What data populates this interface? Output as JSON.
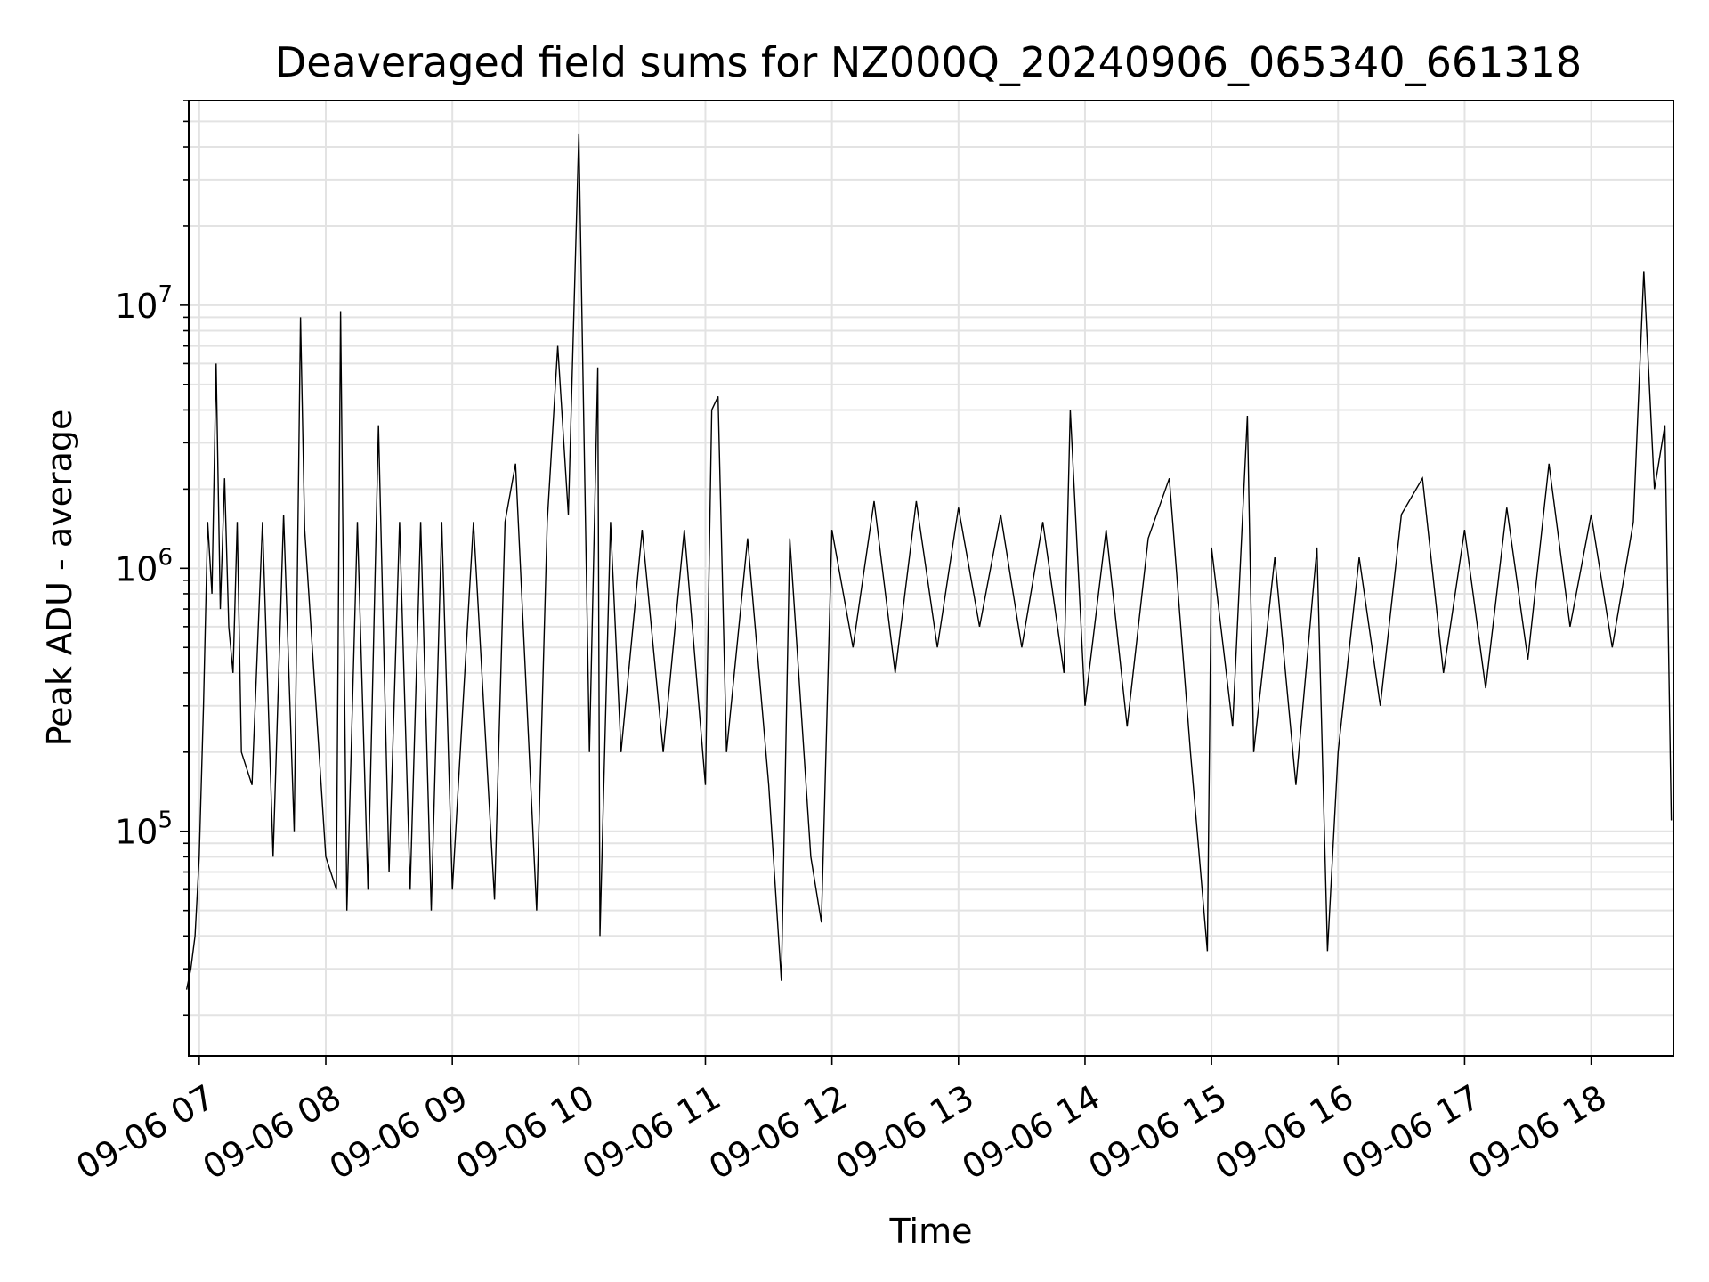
{
  "chart_data": {
    "type": "line",
    "title": "Deaveraged field sums for NZ000Q_20240906_065340_661318",
    "xlabel": "Time",
    "ylabel": "Peak ADU - average",
    "yscale": "log",
    "ylim": [
      14000,
      60000000
    ],
    "xlim": [
      "2024-09-06 06:55",
      "2024-09-06 18:39"
    ],
    "grid": true,
    "line_color": "#000000",
    "x_ticks": [
      {
        "value": "2024-09-06 07:00",
        "label": "09-06 07"
      },
      {
        "value": "2024-09-06 08:00",
        "label": "09-06 08"
      },
      {
        "value": "2024-09-06 09:00",
        "label": "09-06 09"
      },
      {
        "value": "2024-09-06 10:00",
        "label": "09-06 10"
      },
      {
        "value": "2024-09-06 11:00",
        "label": "09-06 11"
      },
      {
        "value": "2024-09-06 12:00",
        "label": "09-06 12"
      },
      {
        "value": "2024-09-06 13:00",
        "label": "09-06 13"
      },
      {
        "value": "2024-09-06 14:00",
        "label": "09-06 14"
      },
      {
        "value": "2024-09-06 15:00",
        "label": "09-06 15"
      },
      {
        "value": "2024-09-06 16:00",
        "label": "09-06 16"
      },
      {
        "value": "2024-09-06 17:00",
        "label": "09-06 17"
      },
      {
        "value": "2024-09-06 18:00",
        "label": "09-06 18"
      }
    ],
    "y_ticks": [
      {
        "value": 100000,
        "base": "10",
        "exp": "5"
      },
      {
        "value": 1000000,
        "base": "10",
        "exp": "6"
      },
      {
        "value": 10000000,
        "base": "10",
        "exp": "7"
      }
    ],
    "x": [
      "2024-09-06 06:54",
      "2024-09-06 06:56",
      "2024-09-06 06:58",
      "2024-09-06 07:00",
      "2024-09-06 07:02",
      "2024-09-06 07:04",
      "2024-09-06 07:06",
      "2024-09-06 07:08",
      "2024-09-06 07:10",
      "2024-09-06 07:12",
      "2024-09-06 07:14",
      "2024-09-06 07:16",
      "2024-09-06 07:18",
      "2024-09-06 07:20",
      "2024-09-06 07:25",
      "2024-09-06 07:30",
      "2024-09-06 07:35",
      "2024-09-06 07:40",
      "2024-09-06 07:45",
      "2024-09-06 07:48",
      "2024-09-06 07:50",
      "2024-09-06 08:00",
      "2024-09-06 08:05",
      "2024-09-06 08:07",
      "2024-09-06 08:10",
      "2024-09-06 08:15",
      "2024-09-06 08:20",
      "2024-09-06 08:25",
      "2024-09-06 08:30",
      "2024-09-06 08:35",
      "2024-09-06 08:40",
      "2024-09-06 08:45",
      "2024-09-06 08:50",
      "2024-09-06 08:55",
      "2024-09-06 09:00",
      "2024-09-06 09:10",
      "2024-09-06 09:20",
      "2024-09-06 09:25",
      "2024-09-06 09:30",
      "2024-09-06 09:40",
      "2024-09-06 09:45",
      "2024-09-06 09:50",
      "2024-09-06 09:55",
      "2024-09-06 10:00",
      "2024-09-06 10:05",
      "2024-09-06 10:09",
      "2024-09-06 10:10",
      "2024-09-06 10:15",
      "2024-09-06 10:20",
      "2024-09-06 10:30",
      "2024-09-06 10:40",
      "2024-09-06 10:50",
      "2024-09-06 11:00",
      "2024-09-06 11:03",
      "2024-09-06 11:06",
      "2024-09-06 11:10",
      "2024-09-06 11:20",
      "2024-09-06 11:30",
      "2024-09-06 11:36",
      "2024-09-06 11:40",
      "2024-09-06 11:50",
      "2024-09-06 11:55",
      "2024-09-06 12:00",
      "2024-09-06 12:10",
      "2024-09-06 12:20",
      "2024-09-06 12:30",
      "2024-09-06 12:40",
      "2024-09-06 12:50",
      "2024-09-06 13:00",
      "2024-09-06 13:10",
      "2024-09-06 13:20",
      "2024-09-06 13:30",
      "2024-09-06 13:40",
      "2024-09-06 13:50",
      "2024-09-06 13:53",
      "2024-09-06 14:00",
      "2024-09-06 14:10",
      "2024-09-06 14:20",
      "2024-09-06 14:30",
      "2024-09-06 14:40",
      "2024-09-06 14:50",
      "2024-09-06 14:58",
      "2024-09-06 15:00",
      "2024-09-06 15:10",
      "2024-09-06 15:17",
      "2024-09-06 15:20",
      "2024-09-06 15:30",
      "2024-09-06 15:40",
      "2024-09-06 15:50",
      "2024-09-06 15:55",
      "2024-09-06 16:00",
      "2024-09-06 16:10",
      "2024-09-06 16:20",
      "2024-09-06 16:30",
      "2024-09-06 16:40",
      "2024-09-06 16:50",
      "2024-09-06 17:00",
      "2024-09-06 17:10",
      "2024-09-06 17:20",
      "2024-09-06 17:30",
      "2024-09-06 17:40",
      "2024-09-06 17:50",
      "2024-09-06 18:00",
      "2024-09-06 18:10",
      "2024-09-06 18:20",
      "2024-09-06 18:25",
      "2024-09-06 18:30",
      "2024-09-06 18:35",
      "2024-09-06 18:38"
    ],
    "y": [
      25000,
      30000,
      40000,
      80000,
      300000,
      1500000,
      800000,
      6000000,
      700000,
      2200000,
      600000,
      400000,
      1500000,
      200000,
      150000,
      1500000,
      80000,
      1600000,
      100000,
      9000000,
      1400000,
      80000,
      60000,
      9500000,
      50000,
      1500000,
      60000,
      3500000,
      70000,
      1500000,
      60000,
      1500000,
      50000,
      1500000,
      60000,
      1500000,
      55000,
      1500000,
      2500000,
      50000,
      1500000,
      7000000,
      1600000,
      45000000,
      200000,
      5800000,
      40000,
      1500000,
      200000,
      1400000,
      200000,
      1400000,
      150000,
      4000000,
      4500000,
      200000,
      1300000,
      150000,
      27000,
      1300000,
      80000,
      45000,
      1400000,
      500000,
      1800000,
      400000,
      1800000,
      500000,
      1700000,
      600000,
      1600000,
      500000,
      1500000,
      400000,
      4000000,
      300000,
      1400000,
      250000,
      1300000,
      2200000,
      200000,
      35000,
      1200000,
      250000,
      3800000,
      200000,
      1100000,
      150000,
      1200000,
      35000,
      200000,
      1100000,
      300000,
      1600000,
      2200000,
      400000,
      1400000,
      350000,
      1700000,
      450000,
      2500000,
      600000,
      1600000,
      500000,
      1500000,
      13500000,
      2000000,
      3500000,
      110000
    ]
  }
}
